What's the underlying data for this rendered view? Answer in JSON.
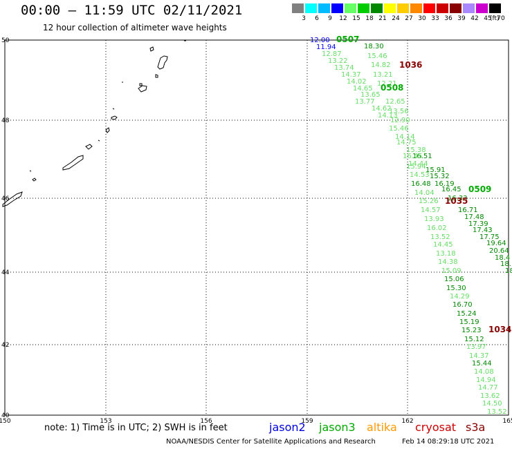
{
  "header": {
    "title": "00:00 – 11:59 UTC 02/11/2021",
    "subtitle": "12 hour collection of altimeter wave heights"
  },
  "color_scale": {
    "unit": "(ft)",
    "bins": [
      {
        "label": "3",
        "color": "#808080"
      },
      {
        "label": "6",
        "color": "#00ffff"
      },
      {
        "label": "9",
        "color": "#00bbff"
      },
      {
        "label": "12",
        "color": "#0000ff"
      },
      {
        "label": "15",
        "color": "#66ff66"
      },
      {
        "label": "18",
        "color": "#00cc00"
      },
      {
        "label": "21",
        "color": "#008800"
      },
      {
        "label": "24",
        "color": "#ffff00"
      },
      {
        "label": "27",
        "color": "#ffcc00"
      },
      {
        "label": "30",
        "color": "#ff8800"
      },
      {
        "label": "33",
        "color": "#ff0000"
      },
      {
        "label": "36",
        "color": "#cc0000"
      },
      {
        "label": "39",
        "color": "#880000"
      },
      {
        "label": "42",
        "color": "#aa88ff"
      },
      {
        "label": "45",
        "color": "#cc00cc"
      },
      {
        "label": "70",
        "color": "#000000"
      }
    ]
  },
  "map": {
    "lon_ticks": [
      "150",
      "153",
      "156",
      "159",
      "162",
      "165"
    ],
    "lat_ticks": [
      "50",
      "48",
      "46",
      "44",
      "42",
      "40"
    ]
  },
  "orbit_times": [
    {
      "text": "0507",
      "color": "#00aa00"
    },
    {
      "text": "1036",
      "color": "#880000"
    },
    {
      "text": "0508",
      "color": "#00aa00"
    },
    {
      "text": "0509",
      "color": "#00aa00"
    },
    {
      "text": "1035",
      "color": "#880000"
    },
    {
      "text": "1034",
      "color": "#880000"
    }
  ],
  "wave_heights": [
    {
      "value": "12.00",
      "color": "#0000ff"
    },
    {
      "value": "11.94",
      "color": "#0000ff"
    },
    {
      "value": "18.30",
      "color": "#008800"
    },
    {
      "value": "12.87",
      "color": "#66dd66"
    },
    {
      "value": "15.46",
      "color": "#66dd66"
    },
    {
      "value": "13.22",
      "color": "#66dd66"
    },
    {
      "value": "14.82",
      "color": "#66dd66"
    },
    {
      "value": "13.74",
      "color": "#66dd66"
    },
    {
      "value": "14.37",
      "color": "#66dd66"
    },
    {
      "value": "13.21",
      "color": "#66dd66"
    },
    {
      "value": "14.02",
      "color": "#66dd66"
    },
    {
      "value": "12.21",
      "color": "#66dd66"
    },
    {
      "value": "14.65",
      "color": "#66dd66"
    },
    {
      "value": "13.65",
      "color": "#66dd66"
    },
    {
      "value": "13.77",
      "color": "#66dd66"
    },
    {
      "value": "12.65",
      "color": "#66dd66"
    },
    {
      "value": "14.62",
      "color": "#66dd66"
    },
    {
      "value": "13.56",
      "color": "#66dd66"
    },
    {
      "value": "14.13",
      "color": "#66dd66"
    },
    {
      "value": "12.90",
      "color": "#66dd66"
    },
    {
      "value": "15.46",
      "color": "#66dd66"
    },
    {
      "value": "14.14",
      "color": "#66dd66"
    },
    {
      "value": "14.75",
      "color": "#66dd66"
    },
    {
      "value": "15.38",
      "color": "#66dd66"
    },
    {
      "value": "16.51",
      "color": "#008800"
    },
    {
      "value": "16.45",
      "color": "#66dd66"
    },
    {
      "value": "14.44",
      "color": "#66dd66"
    },
    {
      "value": "15.94",
      "color": "#66dd66"
    },
    {
      "value": "15.91",
      "color": "#008800"
    },
    {
      "value": "14.53",
      "color": "#66dd66"
    },
    {
      "value": "15.32",
      "color": "#008800"
    },
    {
      "value": "16.48",
      "color": "#008800"
    },
    {
      "value": "16.19",
      "color": "#008800"
    },
    {
      "value": "14.04",
      "color": "#66dd66"
    },
    {
      "value": "16.45",
      "color": "#008800"
    },
    {
      "value": "15.26",
      "color": "#66dd66"
    },
    {
      "value": "16.33",
      "color": "#008800"
    },
    {
      "value": "14.57",
      "color": "#66dd66"
    },
    {
      "value": "16.71",
      "color": "#008800"
    },
    {
      "value": "17.48",
      "color": "#008800"
    },
    {
      "value": "13.93",
      "color": "#66dd66"
    },
    {
      "value": "17.39",
      "color": "#008800"
    },
    {
      "value": "16.02",
      "color": "#66dd66"
    },
    {
      "value": "17.43",
      "color": "#008800"
    },
    {
      "value": "13.52",
      "color": "#66dd66"
    },
    {
      "value": "17.75",
      "color": "#008800"
    },
    {
      "value": "14.45",
      "color": "#66dd66"
    },
    {
      "value": "19.64",
      "color": "#008800"
    },
    {
      "value": "20.64",
      "color": "#008800"
    },
    {
      "value": "13.18",
      "color": "#66dd66"
    },
    {
      "value": "18.4",
      "color": "#008800"
    },
    {
      "value": "14.38",
      "color": "#66dd66"
    },
    {
      "value": "18.",
      "color": "#008800"
    },
    {
      "value": "15.09",
      "color": "#66dd66"
    },
    {
      "value": "18",
      "color": "#008800"
    },
    {
      "value": "15.06",
      "color": "#008800"
    },
    {
      "value": "15.30",
      "color": "#008800"
    },
    {
      "value": "14.29",
      "color": "#66dd66"
    },
    {
      "value": "16.70",
      "color": "#008800"
    },
    {
      "value": "15.24",
      "color": "#008800"
    },
    {
      "value": "15.19",
      "color": "#008800"
    },
    {
      "value": "15.23",
      "color": "#008800"
    },
    {
      "value": "15.12",
      "color": "#008800"
    },
    {
      "value": "13.97",
      "color": "#66dd66"
    },
    {
      "value": "14.37",
      "color": "#66dd66"
    },
    {
      "value": "15.44",
      "color": "#008800"
    },
    {
      "value": "14.08",
      "color": "#66dd66"
    },
    {
      "value": "14.94",
      "color": "#66dd66"
    },
    {
      "value": "14.77",
      "color": "#66dd66"
    },
    {
      "value": "13.62",
      "color": "#66dd66"
    },
    {
      "value": "14.50",
      "color": "#66dd66"
    },
    {
      "value": "13.52",
      "color": "#66dd66"
    }
  ],
  "note": "note:  1) Time is in UTC;  2) SWH is in feet",
  "satellites": [
    {
      "name": "jason2",
      "color": "#0000dd"
    },
    {
      "name": "jason3",
      "color": "#00aa00"
    },
    {
      "name": "altika",
      "color": "#ff9900"
    },
    {
      "name": "cryosat",
      "color": "#cc0000"
    },
    {
      "name": "s3a",
      "color": "#880000"
    }
  ],
  "footer": {
    "credit": "NOAA/NESDIS Center for Satellite Applications and Research",
    "generated": "Feb 14 08:29:18 UTC 2021"
  }
}
